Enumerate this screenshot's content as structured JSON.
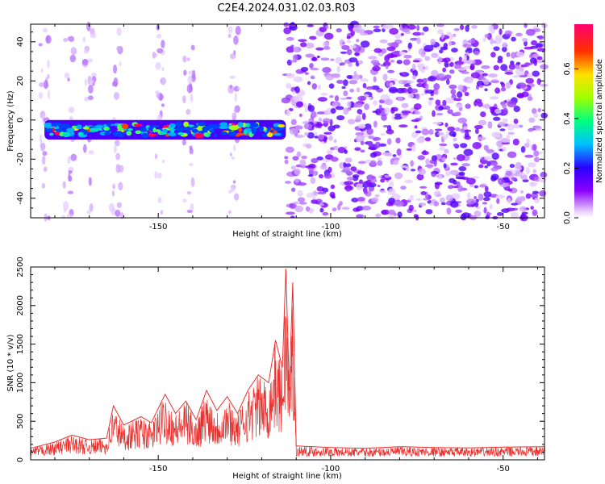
{
  "title": "C2E4.2024.031.02.03.R03",
  "chart_data": [
    {
      "type": "heatmap",
      "xlabel": "Height of straight line (km)",
      "ylabel": "Frequency (Hz)",
      "xlim": [
        -187,
        -38
      ],
      "ylim": [
        -50,
        49
      ],
      "xticks": [
        -150,
        -100,
        -50
      ],
      "yticks": [
        -40,
        -20,
        0,
        20,
        40
      ],
      "colorbar": {
        "label": "Normalized spectral amplitude",
        "range": [
          0.0,
          0.78
        ],
        "ticks": [
          0.0,
          0.2,
          0.4,
          0.6
        ]
      },
      "features": {
        "signal_band_frequency_hz": [
          -9,
          -1
        ],
        "signal_band_x_range_km": [
          -183,
          -113
        ],
        "high_noise_region_start_km": -113
      }
    },
    {
      "type": "line",
      "xlabel": "Height of straight line (km)",
      "ylabel": "SNR (10 * v/v)",
      "xlim": [
        -187,
        -38
      ],
      "ylim": [
        0,
        2500
      ],
      "xticks": [
        -150,
        -100,
        -50
      ],
      "yticks": [
        0,
        500,
        1000,
        1500,
        2000,
        2500
      ],
      "color": "#e8302e",
      "series": [
        {
          "x": [
            -187,
            -180,
            -175,
            -170,
            -165,
            -163,
            -160,
            -155,
            -152,
            -148,
            -145,
            -142,
            -139,
            -136,
            -133,
            -130,
            -127,
            -124,
            -121,
            -118,
            -116,
            -114,
            -113,
            -112,
            -111,
            -110,
            -100,
            -90,
            -80,
            -70,
            -60,
            -50,
            -38
          ],
          "values": [
            150,
            230,
            320,
            260,
            280,
            700,
            450,
            560,
            480,
            850,
            600,
            760,
            520,
            900,
            640,
            820,
            600,
            900,
            1100,
            1000,
            1550,
            1200,
            2480,
            900,
            2300,
            180,
            160,
            150,
            170,
            160,
            155,
            165,
            170
          ]
        }
      ]
    }
  ]
}
